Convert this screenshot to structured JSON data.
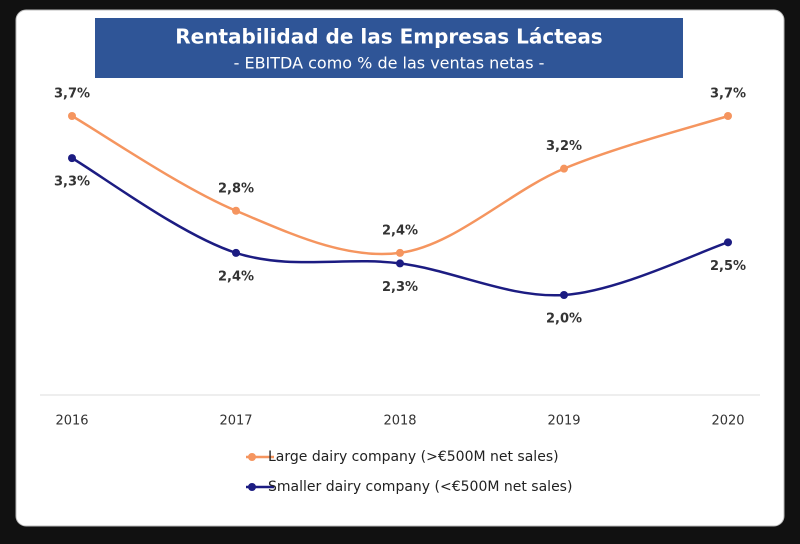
{
  "chart_data": {
    "type": "line",
    "title": "Rentabilidad de las Empresas Lácteas",
    "subtitle": "- EBITDA como % de las ventas netas -",
    "categories": [
      "2016",
      "2017",
      "2018",
      "2019",
      "2020"
    ],
    "series": [
      {
        "name": "Large dairy company (>€500M net sales)",
        "color": "#f5955f",
        "values": [
          3.7,
          2.8,
          2.4,
          3.2,
          3.7
        ],
        "value_labels": [
          "3,7%",
          "2,8%",
          "2,4%",
          "3,2%",
          "3,7%"
        ]
      },
      {
        "name": "Smaller dairy company (<€500M net sales)",
        "color": "#1c1c82",
        "values": [
          3.3,
          2.4,
          2.3,
          2.0,
          2.5
        ],
        "value_labels": [
          "3,3%",
          "2,4%",
          "2,3%",
          "2,0%",
          "2,5%"
        ]
      }
    ]
  }
}
